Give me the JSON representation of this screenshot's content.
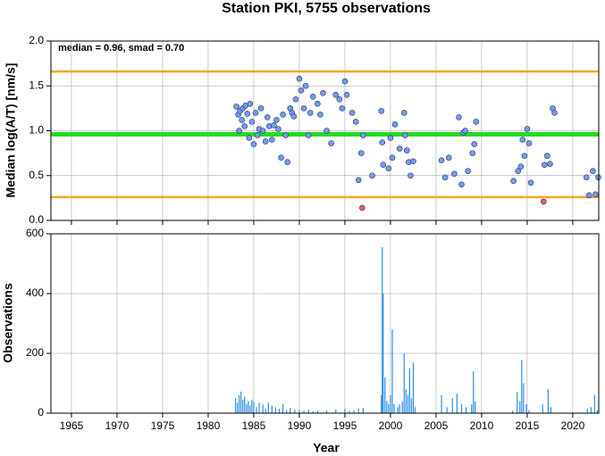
{
  "chart_data": [
    {
      "type": "scatter",
      "title": "Station PKI, 5755 observations",
      "y_label": "Median log(A/T) [nm/s]",
      "annotation": "median = 0.96, smad = 0.70",
      "xlim": [
        1962.75,
        2022.85
      ],
      "xticks": [
        1965,
        1970,
        1975,
        1980,
        1985,
        1990,
        1995,
        2000,
        2005,
        2010,
        2015,
        2020
      ],
      "ylim": [
        0,
        2
      ],
      "yticks": [
        {
          "value": 0,
          "label": "0.0"
        },
        {
          "value": 0.5,
          "label": "0.5"
        },
        {
          "value": 1,
          "label": "1.0"
        },
        {
          "value": 1.5,
          "label": "1.5"
        },
        {
          "value": 2,
          "label": "2.0"
        }
      ],
      "grid": true,
      "hlines": [
        {
          "value": 1.66,
          "color": "#f5a623"
        },
        {
          "value": 0.96,
          "color": "#22dd22"
        },
        {
          "value": 0.26,
          "color": "#f5a623"
        }
      ],
      "series": [
        {
          "color": "#6f9cf7",
          "x": [
            1983.1,
            1983.3,
            1983.4,
            1983.5,
            1983.7,
            1983.8,
            1984.0,
            1984.1,
            1984.3,
            1984.5,
            1984.6,
            1984.8,
            1985.0,
            1985.2,
            1985.4,
            1985.6,
            1985.8,
            1986.0,
            1986.3,
            1986.5,
            1986.7,
            1987.0,
            1987.2,
            1987.5,
            1987.7,
            1988.0,
            1988.2,
            1988.5,
            1988.7,
            1989.0,
            1989.2,
            1989.4,
            1989.6,
            1990.0,
            1990.2,
            1990.5,
            1990.7,
            1991.0,
            1991.2,
            1991.5,
            1992.0,
            1992.3,
            1992.6,
            1993.0,
            1993.5,
            1994.0,
            1994.4,
            1994.7,
            1995.0,
            1995.2,
            1995.8,
            1996.2,
            1996.5,
            1996.8,
            1997.0,
            1998.0,
            1999.0,
            1999.1,
            1999.2,
            1999.8,
            2000.0,
            2000.2,
            2000.5,
            2001.0,
            2001.5,
            2001.6,
            2001.8,
            2002.0,
            2002.2,
            2002.5,
            2005.6,
            2006.0,
            2006.4,
            2007.0,
            2007.5,
            2007.8,
            2008.0,
            2008.2,
            2008.5,
            2009.0,
            2009.2,
            2009.4,
            2013.5,
            2014.0,
            2014.3,
            2014.5,
            2014.7,
            2015.0,
            2015.2,
            2015.4,
            2016.9,
            2017.2,
            2017.5,
            2017.8,
            2018.0,
            2021.5,
            2021.8,
            2022.2,
            2022.5,
            2022.8
          ],
          "values": [
            1.27,
            1.18,
            1.0,
            1.22,
            1.12,
            1.25,
            1.05,
            1.28,
            1.19,
            0.92,
            1.3,
            1.1,
            0.85,
            1.2,
            0.95,
            1.02,
            1.25,
            1.0,
            0.88,
            1.15,
            1.05,
            0.9,
            1.06,
            1.12,
            1.02,
            0.7,
            1.18,
            0.95,
            0.65,
            1.25,
            1.2,
            1.16,
            1.35,
            1.58,
            1.45,
            1.25,
            1.5,
            0.95,
            1.2,
            1.38,
            1.3,
            1.18,
            1.42,
            1.0,
            0.86,
            1.4,
            1.35,
            1.25,
            1.55,
            1.4,
            1.2,
            1.1,
            0.45,
            0.75,
            0.95,
            0.5,
            1.22,
            0.87,
            0.62,
            0.58,
            0.92,
            0.7,
            1.07,
            0.8,
            1.2,
            0.95,
            0.78,
            0.65,
            0.5,
            0.66,
            0.67,
            0.48,
            0.7,
            0.52,
            1.15,
            0.4,
            0.98,
            1.0,
            0.55,
            0.75,
            0.85,
            1.1,
            0.44,
            0.55,
            0.6,
            0.9,
            0.72,
            1.02,
            0.86,
            0.42,
            0.62,
            0.72,
            0.63,
            1.25,
            1.2,
            0.48,
            0.28,
            0.55,
            0.29,
            0.48
          ]
        },
        {
          "color": "#f25c54",
          "x": [
            1996.9,
            2016.8
          ],
          "values": [
            0.14,
            0.21
          ]
        }
      ]
    },
    {
      "type": "bar",
      "y_label": "Observations",
      "x_label": "Year",
      "color": "#2b8fe8",
      "xlim": [
        1962.75,
        2022.85
      ],
      "xticks": [
        1965,
        1970,
        1975,
        1980,
        1985,
        1990,
        1995,
        2000,
        2005,
        2010,
        2015,
        2020
      ],
      "ylim": [
        0,
        600
      ],
      "yticks": [
        0,
        200,
        400,
        600
      ],
      "grid": true,
      "x": [
        1983.0,
        1983.2,
        1983.4,
        1983.6,
        1983.8,
        1984.0,
        1984.2,
        1984.4,
        1984.6,
        1984.8,
        1985.0,
        1985.3,
        1985.6,
        1986.0,
        1986.3,
        1986.6,
        1987.0,
        1987.4,
        1987.8,
        1988.2,
        1988.6,
        1989.0,
        1989.5,
        1990.0,
        1990.5,
        1991.0,
        1991.5,
        1992.0,
        1993.0,
        1994.0,
        1995.0,
        1995.5,
        1996.0,
        1996.5,
        1997.0,
        1999.0,
        1999.1,
        1999.2,
        1999.4,
        1999.6,
        1999.8,
        2000.0,
        2000.2,
        2000.4,
        2000.8,
        2001.0,
        2001.3,
        2001.5,
        2001.7,
        2001.9,
        2002.1,
        2002.3,
        2002.5,
        2002.7,
        2005.6,
        2006.2,
        2006.8,
        2007.3,
        2007.8,
        2008.3,
        2008.9,
        2009.1,
        2009.3,
        2013.4,
        2013.9,
        2014.2,
        2014.4,
        2014.6,
        2014.9,
        2015.2,
        2016.7,
        2017.3,
        2017.6,
        2021.6,
        2022.0,
        2022.4,
        2022.7
      ],
      "values": [
        50,
        35,
        60,
        72,
        45,
        55,
        30,
        40,
        25,
        45,
        38,
        20,
        35,
        30,
        15,
        35,
        25,
        20,
        15,
        30,
        10,
        18,
        12,
        10,
        8,
        12,
        6,
        8,
        10,
        12,
        15,
        8,
        10,
        15,
        18,
        60,
        555,
        400,
        120,
        40,
        30,
        60,
        280,
        30,
        20,
        30,
        40,
        200,
        80,
        60,
        150,
        50,
        170,
        20,
        60,
        20,
        50,
        65,
        30,
        20,
        30,
        140,
        40,
        8,
        70,
        40,
        178,
        100,
        30,
        10,
        30,
        80,
        20,
        15,
        20,
        60,
        10
      ]
    }
  ]
}
